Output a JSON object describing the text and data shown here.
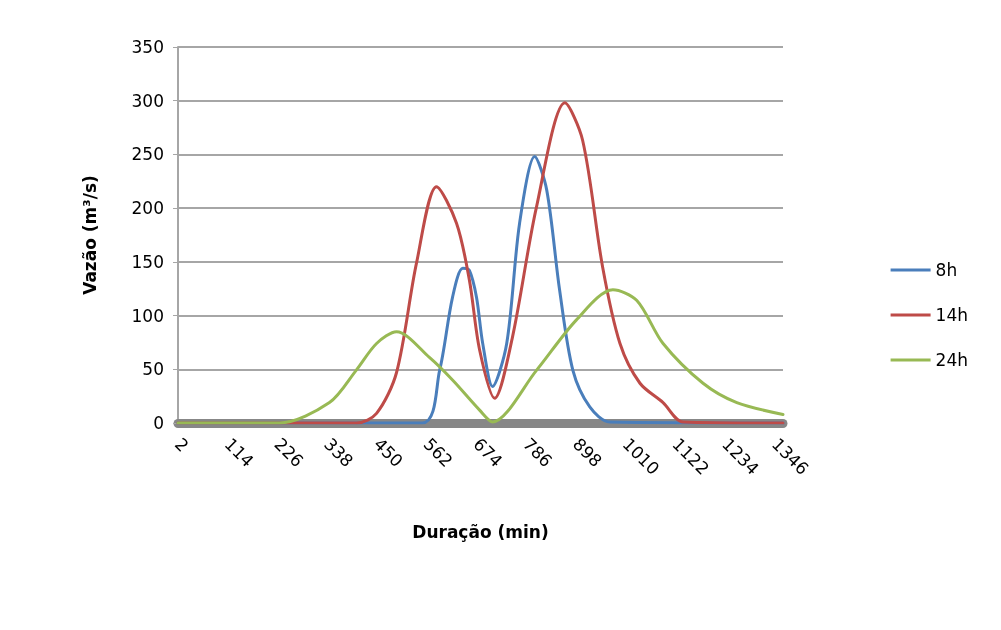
{
  "chart_data": {
    "type": "line",
    "xlabel": "Duração (min)",
    "ylabel": "Vazão (m³/s)",
    "xlim": [
      2,
      1364
    ],
    "xticks": [
      2,
      114,
      226,
      338,
      450,
      562,
      674,
      786,
      898,
      1010,
      1122,
      1234,
      1346
    ],
    "ylim": [
      0,
      350
    ],
    "yticks": [
      0,
      50,
      100,
      150,
      200,
      250,
      300,
      350
    ],
    "grid": "y",
    "legend": "right",
    "marker": "none",
    "line_style": "solid",
    "series": [
      {
        "name": "8h",
        "color": "#4a7ebb",
        "x": [
          2,
          552,
          591,
          620,
          643,
          658,
          674,
          688,
          710,
          742,
          771,
          805,
          832,
          861,
          891,
          929,
          974,
          1364
        ],
        "values": [
          0,
          0,
          49,
          117,
          144,
          142,
          117,
          74,
          34,
          74,
          186,
          248,
          217,
          124,
          49,
          15,
          1,
          0
        ]
      },
      {
        "name": "14h",
        "color": "#be4b48",
        "x": [
          2,
          404,
          449,
          494,
          539,
          584,
          629,
          658,
          681,
          715,
          755,
          809,
          873,
          913,
          958,
          997,
          1042,
          1094,
          1139,
          1364
        ],
        "values": [
          0,
          0,
          9,
          47,
          149,
          220,
          186,
          133,
          68,
          23,
          80,
          201,
          298,
          263,
          145,
          74,
          37,
          19,
          1,
          0
        ]
      },
      {
        "name": "24h",
        "color": "#98b954",
        "x": [
          2,
          230,
          343,
          403,
          449,
          494,
          568,
          620,
          681,
          710,
          809,
          899,
          981,
          1035,
          1094,
          1184,
          1260,
          1364
        ],
        "values": [
          0,
          0,
          19,
          49,
          74,
          85,
          61,
          40,
          12,
          1,
          49,
          96,
          124,
          114,
          74,
          37,
          19,
          8
        ]
      }
    ]
  }
}
